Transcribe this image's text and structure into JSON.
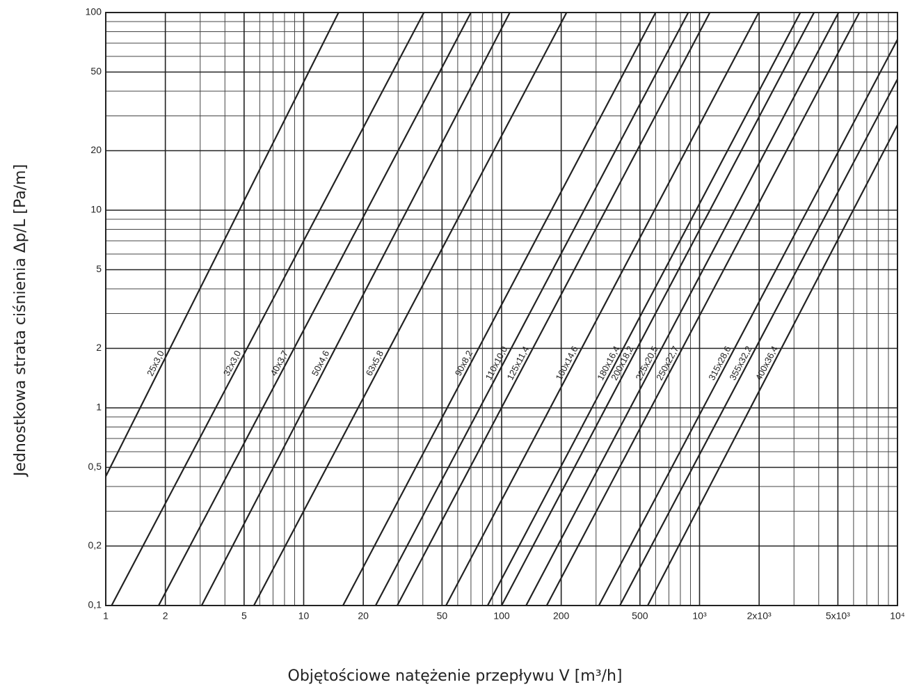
{
  "chart_data": {
    "type": "line",
    "log_x": true,
    "log_y": true,
    "grid": true,
    "minor_grid": true,
    "line_color": "#222222",
    "xlabel": "Objętościowe natężenie przepływu V [m³/h]",
    "ylabel": "Jednostkowa strata ciśnienia Δp/L [Pa/m]",
    "xlim": [
      1,
      10000
    ],
    "ylim": [
      0.1,
      100
    ],
    "xticks": [
      1,
      2,
      5,
      10,
      20,
      50,
      100,
      200,
      500,
      {
        "value": 1000,
        "label": "10³"
      },
      {
        "value": 2000,
        "label": "2x10³"
      },
      {
        "value": 5000,
        "label": "5x10³"
      },
      {
        "value": 10000,
        "label": "10⁴"
      }
    ],
    "yticks": [
      {
        "value": 0.1,
        "label": "0,1"
      },
      {
        "value": 0.2,
        "label": "0,2"
      },
      {
        "value": 0.5,
        "label": "0,5"
      },
      1,
      2,
      5,
      10,
      20,
      50,
      100
    ],
    "series": [
      {
        "name": "25x3,0",
        "x": [
          1,
          15
        ],
        "values": [
          0.45,
          100
        ]
      },
      {
        "name": "32x3,0",
        "x": [
          1.07,
          40.5
        ],
        "values": [
          0.1,
          100
        ]
      },
      {
        "name": "40x3,7",
        "x": [
          1.85,
          70
        ],
        "values": [
          0.1,
          100
        ]
      },
      {
        "name": "50x4,6",
        "x": [
          3.05,
          110
        ],
        "values": [
          0.1,
          100
        ]
      },
      {
        "name": "63x5,8",
        "x": [
          5.6,
          213
        ],
        "values": [
          0.1,
          100
        ]
      },
      {
        "name": "90x8,2",
        "x": [
          15.8,
          600
        ],
        "values": [
          0.1,
          100
        ]
      },
      {
        "name": "110x10,0",
        "x": [
          23.1,
          877
        ],
        "values": [
          0.1,
          100
        ]
      },
      {
        "name": "125x11,4",
        "x": [
          29.7,
          1127
        ],
        "values": [
          0.1,
          100
        ]
      },
      {
        "name": "160x14,6",
        "x": [
          52.4,
          1990
        ],
        "values": [
          0.1,
          100
        ]
      },
      {
        "name": "180x16,4",
        "x": [
          85,
          3230
        ],
        "values": [
          0.1,
          100
        ]
      },
      {
        "name": "200x18,2",
        "x": [
          100,
          3790
        ],
        "values": [
          0.1,
          100
        ]
      },
      {
        "name": "225x20,5",
        "x": [
          133,
          5040
        ],
        "values": [
          0.1,
          100
        ]
      },
      {
        "name": "250x22,7",
        "x": [
          169,
          6420
        ],
        "values": [
          0.1,
          100
        ]
      },
      {
        "name": "315x28,6",
        "x": [
          310,
          10000
        ],
        "values": [
          0.1,
          73
        ]
      },
      {
        "name": "355x32,2",
        "x": [
          396,
          10000
        ],
        "values": [
          0.1,
          46
        ]
      },
      {
        "name": "400x36,4",
        "x": [
          547,
          10000
        ],
        "values": [
          0.1,
          27
        ]
      }
    ]
  }
}
